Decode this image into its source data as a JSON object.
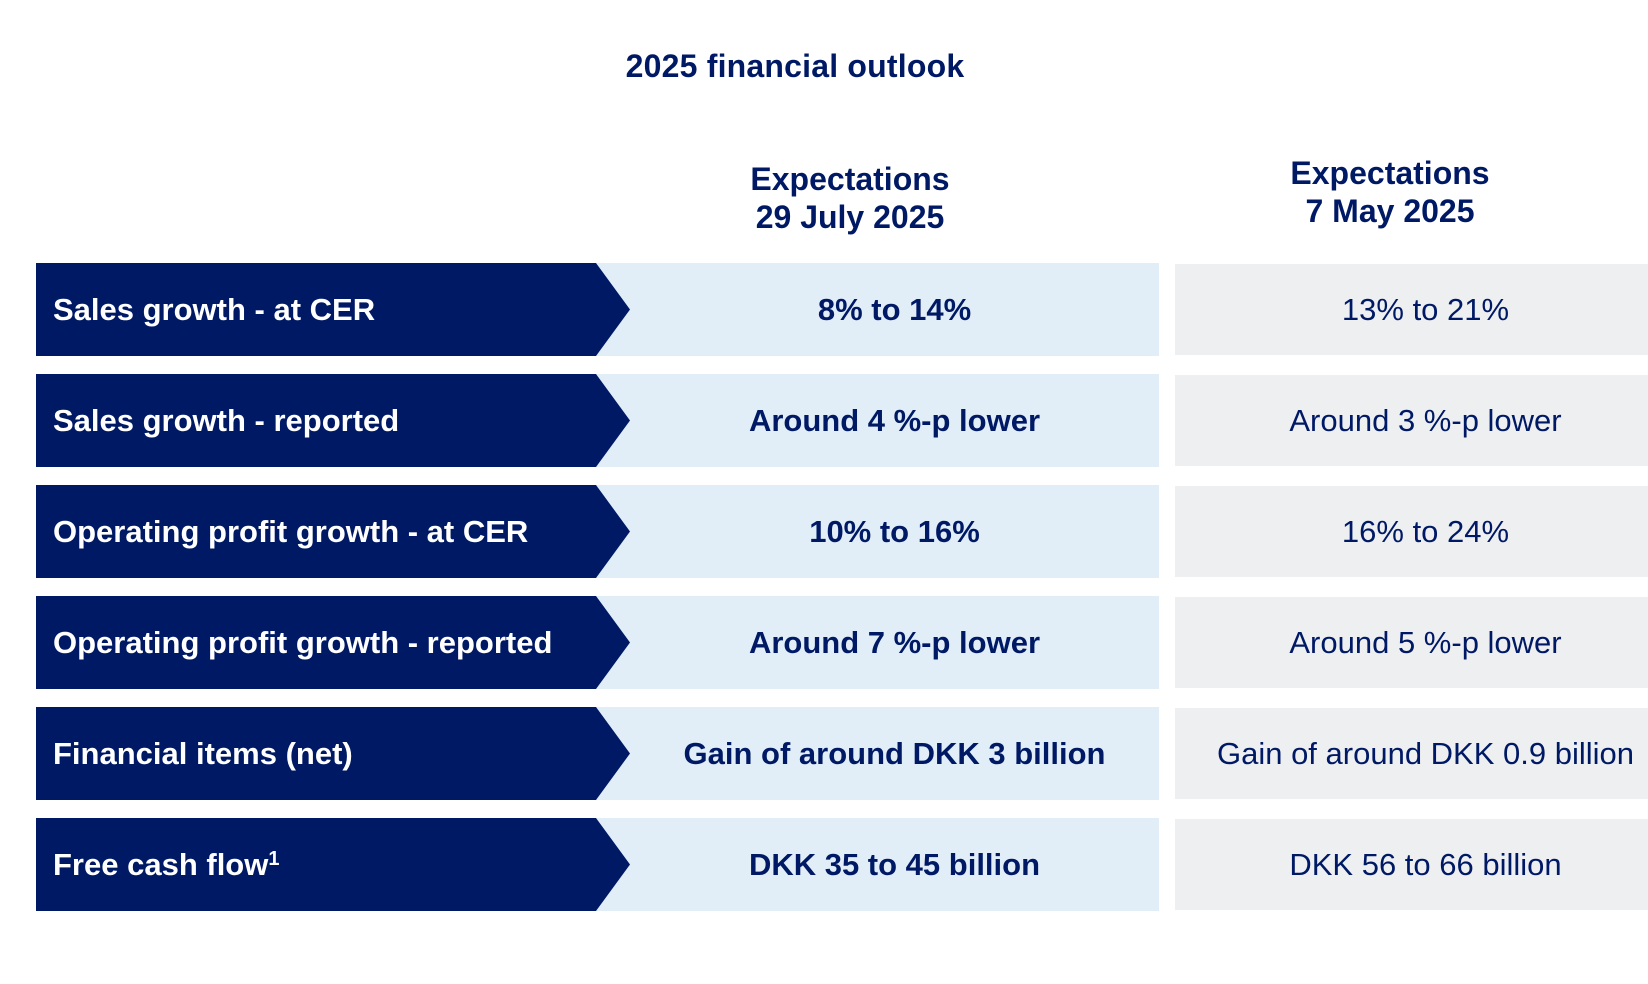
{
  "title": "2025 financial outlook",
  "columns": {
    "current": {
      "line1": "Expectations",
      "line2": "29 July 2025"
    },
    "previous": {
      "line1": "Expectations",
      "line2": "7 May 2025"
    }
  },
  "rows": [
    {
      "label": "Sales growth - at CER",
      "current": "8% to 14%",
      "previous": "13% to 21%"
    },
    {
      "label": "Sales growth - reported",
      "current": "Around 4 %-p lower",
      "previous": "Around 3 %-p lower"
    },
    {
      "label": "Operating profit growth - at CER",
      "current": "10% to 16%",
      "previous": "16% to 24%"
    },
    {
      "label": "Operating profit growth - reported",
      "current": "Around 7 %-p lower",
      "previous": "Around 5 %-p lower"
    },
    {
      "label": "Financial items (net)",
      "current": "Gain of around DKK 3 billion",
      "previous": "Gain of around DKK 0.9 billion"
    },
    {
      "label": "Free cash flow",
      "footnote": "1",
      "current": "DKK 35 to 45 billion",
      "previous": "DKK 56 to 66 billion"
    }
  ]
}
